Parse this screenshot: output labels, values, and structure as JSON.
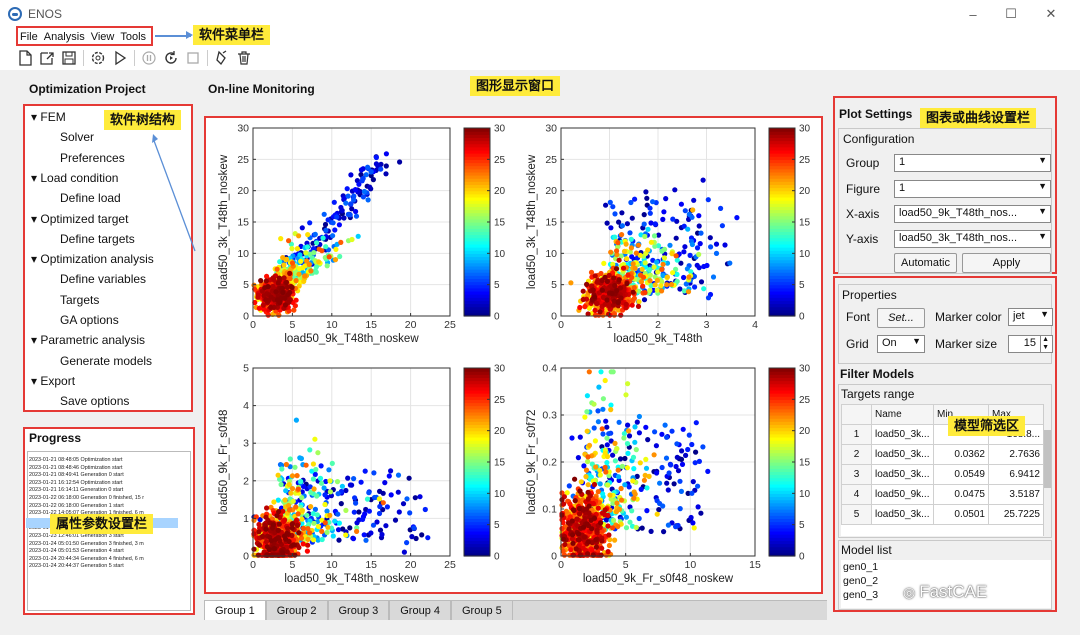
{
  "app": {
    "title": "ENOS"
  },
  "window_controls": {
    "minimize": "–",
    "maximize": "☐",
    "close": "✕"
  },
  "menu": [
    "File",
    "Analysis",
    "View",
    "Tools"
  ],
  "toolbar_icons": [
    "new-file-icon",
    "open-file-icon",
    "save-icon",
    "settings-icon",
    "run-icon",
    "pause-icon",
    "resume-icon",
    "stop-icon",
    "clean-icon",
    "delete-icon"
  ],
  "annotations": {
    "menu": "软件菜单栏",
    "tree": "软件树结构",
    "plot": "图形显示窗口",
    "settings": "图表或曲线设置栏",
    "props": "属性参数设置栏",
    "filter": "模型筛选区"
  },
  "left": {
    "title": "Optimization Project",
    "tree": [
      {
        "label": "FEM",
        "level": 0,
        "expanded": true
      },
      {
        "label": "Solver",
        "level": 1
      },
      {
        "label": "Preferences",
        "level": 1
      },
      {
        "label": "Load condition",
        "level": 0,
        "expanded": true
      },
      {
        "label": "Define load",
        "level": 1
      },
      {
        "label": "Optimized target",
        "level": 0,
        "expanded": true
      },
      {
        "label": "Define targets",
        "level": 1
      },
      {
        "label": "Optimization analysis",
        "level": 0,
        "expanded": true
      },
      {
        "label": "Define variables",
        "level": 1
      },
      {
        "label": "Targets",
        "level": 1
      },
      {
        "label": "GA options",
        "level": 1
      },
      {
        "label": "Parametric analysis",
        "level": 0,
        "expanded": true
      },
      {
        "label": "Generate models",
        "level": 1
      },
      {
        "label": "Export",
        "level": 0,
        "expanded": true
      },
      {
        "label": "Save options",
        "level": 1
      }
    ],
    "progress_title": "Progress",
    "progress_log": [
      "2023-01-21 08:48:05  Optimization start",
      "2023-01-21 08:48:46  Optimization start",
      "2023-01-21 08:49:41  Generation 0 start",
      "2023-01-21 16:12:54  Optimization start",
      "2023-01-21 16:14:11  Generation 0 start",
      "2023-01-22 06:18:00  Generation 0 finished, 15 r",
      "2023-01-22 06:18:00  Generation 1 start",
      "2023-01-22 14:05:07  Generation 1 finished, 6 m",
      "2023-01-22 22:13:59  Generation 2 start",
      "2023-01-23 12:45:58  Generation 2 finished, 15 r",
      "2023-01-23 12:46:01  Generation 3 start",
      "2023-01-24 05:01:50  Generation 3 finished, 3 m",
      "2023-01-24 05:01:53  Generation 4 start",
      "2023-01-24 20:44:34  Generation 4 finished, 6 m",
      "2023-01-24 20:44:37  Generation 5 start"
    ]
  },
  "center": {
    "title": "On-line Monitoring",
    "tabs": [
      "Group 1",
      "Group 2",
      "Group 3",
      "Group 4",
      "Group 5"
    ],
    "active_tab": 0
  },
  "chart_data": [
    {
      "type": "scatter",
      "xlabel": "load50_9k_T48th_noskew",
      "ylabel": "load50_3k_T48th_noskew",
      "xlim": [
        0,
        25
      ],
      "ylim": [
        0,
        30
      ],
      "xticks": [
        0,
        5,
        10,
        15,
        20,
        25
      ],
      "yticks": [
        0,
        5,
        10,
        15,
        20,
        25,
        30
      ],
      "colorbar": {
        "min": 0,
        "max": 30,
        "ticks": [
          0,
          5,
          10,
          15,
          20,
          25,
          30
        ],
        "colormap": "jet"
      }
    },
    {
      "type": "scatter",
      "xlabel": "load50_9k_T48th",
      "ylabel": "load50_3k_T48th_noskew",
      "xlim": [
        0,
        4
      ],
      "ylim": [
        0,
        30
      ],
      "xticks": [
        0,
        1,
        2,
        3,
        4
      ],
      "yticks": [
        0,
        5,
        10,
        15,
        20,
        25,
        30
      ],
      "colorbar": {
        "min": 0,
        "max": 30,
        "ticks": [
          0,
          5,
          10,
          15,
          20,
          25,
          30
        ],
        "colormap": "jet"
      }
    },
    {
      "type": "scatter",
      "xlabel": "load50_9k_T48th_noskew",
      "ylabel": "load50_9k_Fr_s0f48",
      "xlim": [
        0,
        25
      ],
      "ylim": [
        0,
        5
      ],
      "xticks": [
        0,
        5,
        10,
        15,
        20,
        25
      ],
      "yticks": [
        0,
        1,
        2,
        3,
        4,
        5
      ],
      "colorbar": {
        "min": 0,
        "max": 30,
        "ticks": [
          0,
          5,
          10,
          15,
          20,
          25,
          30
        ],
        "colormap": "jet"
      }
    },
    {
      "type": "scatter",
      "xlabel": "load50_9k_Fr_s0f48_noskew",
      "ylabel": "load50_9k_Fr_s0f72",
      "xlim": [
        0,
        15
      ],
      "ylim": [
        0,
        0.4
      ],
      "xticks": [
        0,
        5,
        10,
        15
      ],
      "yticks": [
        0,
        0.1,
        0.2,
        0.3,
        0.4
      ],
      "colorbar": {
        "min": 0,
        "max": 30,
        "ticks": [
          0,
          5,
          10,
          15,
          20,
          25,
          30
        ],
        "colormap": "jet"
      }
    }
  ],
  "plot_settings": {
    "title": "Plot Settings",
    "configuration": "Configuration",
    "group_label": "Group",
    "group_value": "1",
    "figure_label": "Figure",
    "figure_value": "1",
    "xaxis_label": "X-axis",
    "xaxis_value": "load50_9k_T48th_nos...",
    "yaxis_label": "Y-axis",
    "yaxis_value": "load50_3k_T48th_nos...",
    "automatic": "Automatic",
    "apply": "Apply"
  },
  "properties": {
    "title": "Properties",
    "font_label": "Font",
    "font_btn": "Set...",
    "marker_color_label": "Marker color",
    "marker_color_value": "jet",
    "grid_label": "Grid",
    "grid_value": "On",
    "marker_size_label": "Marker size",
    "marker_size_value": "15"
  },
  "filter": {
    "title": "Filter Models",
    "targets_range": "Targets range",
    "columns": [
      "",
      "Name",
      "Min",
      "Max"
    ],
    "rows": [
      [
        "1",
        "load50_3k...",
        "",
        "168.8..."
      ],
      [
        "2",
        "load50_3k...",
        "0.0362",
        "2.7636"
      ],
      [
        "3",
        "load50_3k...",
        "0.0549",
        "6.9412"
      ],
      [
        "4",
        "load50_9k...",
        "0.0475",
        "3.5187"
      ],
      [
        "5",
        "load50_3k...",
        "0.0501",
        "25.7225"
      ]
    ],
    "model_list_title": "Model list",
    "models": [
      "gen0_1",
      "gen0_2",
      "gen0_3"
    ]
  },
  "watermark": "FastCAE"
}
